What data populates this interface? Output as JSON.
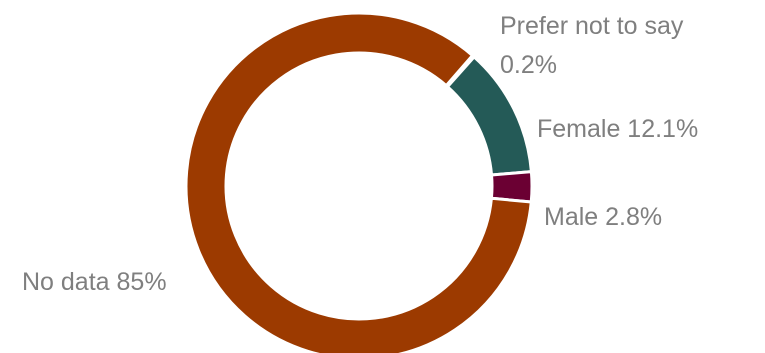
{
  "chart_data": {
    "type": "pie",
    "variant": "donut",
    "title": "",
    "slices": [
      {
        "label": "Prefer not to say",
        "value": 0.2,
        "display": "0.2%",
        "color": "#a6a6a6"
      },
      {
        "label": "Female",
        "value": 12.1,
        "display": "12.1%",
        "color": "#245a57"
      },
      {
        "label": "Male",
        "value": 2.8,
        "display": "2.8%",
        "color": "#6b0033"
      },
      {
        "label": "No data",
        "value": 85,
        "display": "85%",
        "color": "#9c3a00"
      }
    ],
    "legend": "none",
    "data_labels": "outside"
  }
}
